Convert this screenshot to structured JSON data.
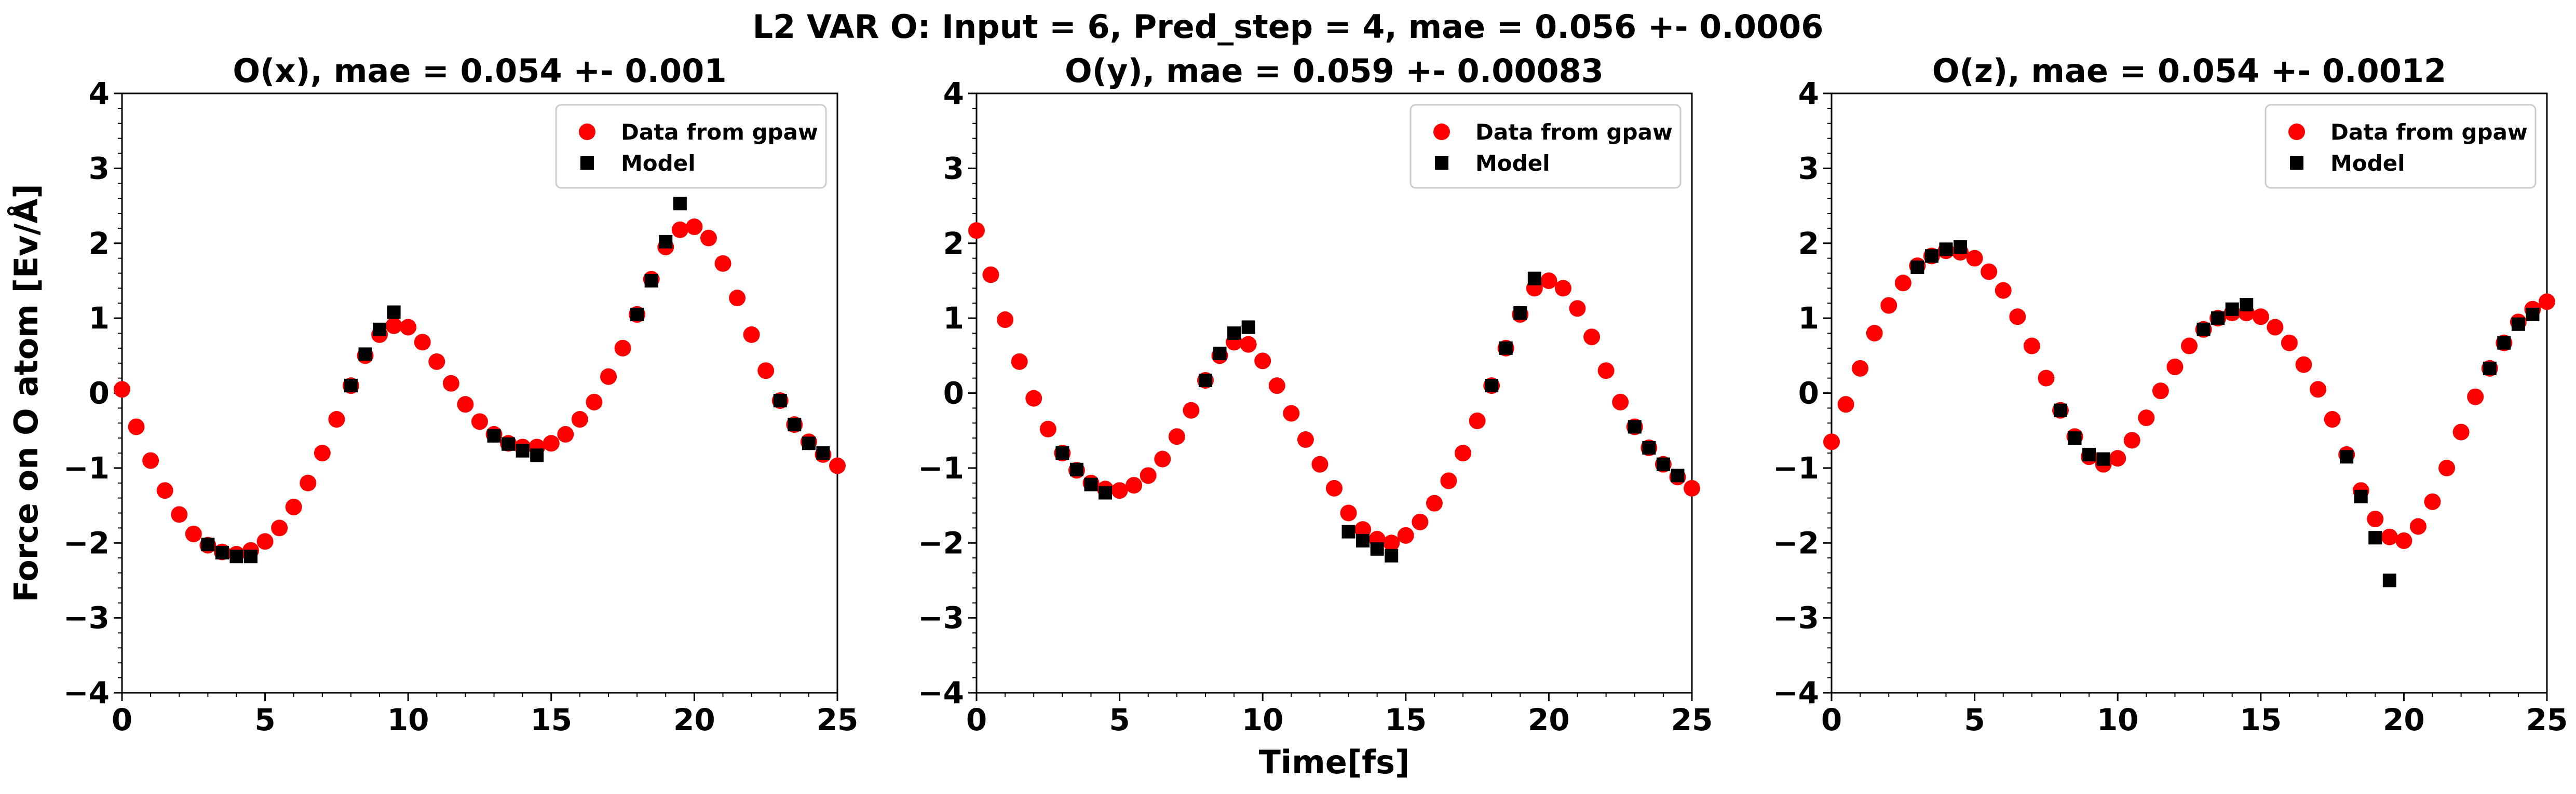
{
  "suptitle": "L2 VAR O: Input = 6, Pred_step = 4, mae = 0.056 +- 0.0006",
  "colors": {
    "data": "#ff0000",
    "model": "#000000"
  },
  "chart_data": [
    {
      "type": "scatter",
      "title": "O(x), mae = 0.054 +- 0.001",
      "xlabel": "",
      "ylabel": "Force on O atom [Ev/Å]",
      "xlim": [
        0,
        25
      ],
      "ylim": [
        -4,
        4
      ],
      "xticks": [
        "0",
        "5",
        "10",
        "15",
        "20",
        "25"
      ],
      "yticks": [
        "−4",
        "−3",
        "−2",
        "−1",
        "0",
        "1",
        "2",
        "3",
        "4"
      ],
      "legend_position": "top-right",
      "series": [
        {
          "name": "Data from gpaw",
          "marker": "circle",
          "x": [
            0,
            0.5,
            1,
            1.5,
            2,
            2.5,
            3,
            3.5,
            4,
            4.5,
            5,
            5.5,
            6,
            6.5,
            7,
            7.5,
            8,
            8.5,
            9,
            9.5,
            10,
            10.5,
            11,
            11.5,
            12,
            12.5,
            13,
            13.5,
            14,
            14.5,
            15,
            15.5,
            16,
            16.5,
            17,
            17.5,
            18,
            18.5,
            19,
            19.5,
            20,
            20.5,
            21,
            21.5,
            22,
            22.5,
            23,
            23.5,
            24,
            24.5,
            25
          ],
          "y": [
            0.05,
            -0.45,
            -0.9,
            -1.3,
            -1.62,
            -1.88,
            -2.03,
            -2.12,
            -2.15,
            -2.1,
            -1.98,
            -1.8,
            -1.52,
            -1.2,
            -0.8,
            -0.35,
            0.1,
            0.5,
            0.78,
            0.9,
            0.88,
            0.68,
            0.42,
            0.13,
            -0.15,
            -0.38,
            -0.55,
            -0.67,
            -0.72,
            -0.72,
            -0.67,
            -0.55,
            -0.35,
            -0.12,
            0.22,
            0.6,
            1.05,
            1.52,
            1.95,
            2.18,
            2.22,
            2.07,
            1.73,
            1.27,
            0.78,
            0.3,
            -0.1,
            -0.42,
            -0.65,
            -0.82,
            -0.97
          ]
        },
        {
          "name": "Model",
          "marker": "square",
          "x": [
            3,
            3.5,
            4,
            4.5,
            8,
            8.5,
            9,
            9.5,
            13,
            13.5,
            14,
            14.5,
            18,
            18.5,
            19,
            19.5,
            23,
            23.5,
            24,
            24.5
          ],
          "y": [
            -2.02,
            -2.13,
            -2.18,
            -2.18,
            0.1,
            0.52,
            0.85,
            1.08,
            -0.57,
            -0.68,
            -0.77,
            -0.83,
            1.05,
            1.5,
            2.02,
            2.53,
            -0.1,
            -0.42,
            -0.67,
            -0.8
          ]
        }
      ]
    },
    {
      "type": "scatter",
      "title": "O(y), mae = 0.059 +- 0.00083",
      "xlabel": "Time[fs]",
      "ylabel": "",
      "xlim": [
        0,
        25
      ],
      "ylim": [
        -4,
        4
      ],
      "xticks": [
        "0",
        "5",
        "10",
        "15",
        "20",
        "25"
      ],
      "yticks": [
        "−4",
        "−3",
        "−2",
        "−1",
        "0",
        "1",
        "2",
        "3",
        "4"
      ],
      "legend_position": "top-right",
      "series": [
        {
          "name": "Data from gpaw",
          "marker": "circle",
          "x": [
            0,
            0.5,
            1,
            1.5,
            2,
            2.5,
            3,
            3.5,
            4,
            4.5,
            5,
            5.5,
            6,
            6.5,
            7,
            7.5,
            8,
            8.5,
            9,
            9.5,
            10,
            10.5,
            11,
            11.5,
            12,
            12.5,
            13,
            13.5,
            14,
            14.5,
            15,
            15.5,
            16,
            16.5,
            17,
            17.5,
            18,
            18.5,
            19,
            19.5,
            20,
            20.5,
            21,
            21.5,
            22,
            22.5,
            23,
            23.5,
            24,
            24.5,
            25
          ],
          "y": [
            2.17,
            1.58,
            0.98,
            0.42,
            -0.07,
            -0.48,
            -0.8,
            -1.03,
            -1.2,
            -1.28,
            -1.3,
            -1.23,
            -1.1,
            -0.88,
            -0.58,
            -0.23,
            0.17,
            0.5,
            0.68,
            0.65,
            0.43,
            0.1,
            -0.27,
            -0.62,
            -0.95,
            -1.27,
            -1.6,
            -1.82,
            -1.95,
            -2.0,
            -1.9,
            -1.72,
            -1.47,
            -1.17,
            -0.8,
            -0.37,
            0.1,
            0.6,
            1.05,
            1.4,
            1.5,
            1.4,
            1.13,
            0.75,
            0.3,
            -0.12,
            -0.45,
            -0.73,
            -0.95,
            -1.12,
            -1.27
          ]
        },
        {
          "name": "Model",
          "marker": "square",
          "x": [
            3,
            3.5,
            4,
            4.5,
            8,
            8.5,
            9,
            9.5,
            13,
            13.5,
            14,
            14.5,
            18,
            18.5,
            19,
            19.5,
            23,
            23.5,
            24,
            24.5
          ],
          "y": [
            -0.8,
            -1.02,
            -1.22,
            -1.33,
            0.17,
            0.53,
            0.8,
            0.88,
            -1.85,
            -1.97,
            -2.08,
            -2.17,
            0.1,
            0.6,
            1.07,
            1.53,
            -0.45,
            -0.73,
            -0.95,
            -1.1
          ]
        }
      ]
    },
    {
      "type": "scatter",
      "title": "O(z), mae = 0.054 +- 0.0012",
      "xlabel": "",
      "ylabel": "",
      "xlim": [
        0,
        25
      ],
      "ylim": [
        -4,
        4
      ],
      "xticks": [
        "0",
        "5",
        "10",
        "15",
        "20",
        "25"
      ],
      "yticks": [
        "−4",
        "−3",
        "−2",
        "−1",
        "0",
        "1",
        "2",
        "3",
        "4"
      ],
      "legend_position": "top-right",
      "series": [
        {
          "name": "Data from gpaw",
          "marker": "circle",
          "x": [
            0,
            0.5,
            1,
            1.5,
            2,
            2.5,
            3,
            3.5,
            4,
            4.5,
            5,
            5.5,
            6,
            6.5,
            7,
            7.5,
            8,
            8.5,
            9,
            9.5,
            10,
            10.5,
            11,
            11.5,
            12,
            12.5,
            13,
            13.5,
            14,
            14.5,
            15,
            15.5,
            16,
            16.5,
            17,
            17.5,
            18,
            18.5,
            19,
            19.5,
            20,
            20.5,
            21,
            21.5,
            22,
            22.5,
            23,
            23.5,
            24,
            24.5,
            25
          ],
          "y": [
            -0.65,
            -0.15,
            0.33,
            0.8,
            1.17,
            1.47,
            1.7,
            1.83,
            1.9,
            1.88,
            1.8,
            1.62,
            1.37,
            1.02,
            0.63,
            0.2,
            -0.23,
            -0.58,
            -0.85,
            -0.95,
            -0.87,
            -0.63,
            -0.33,
            0.03,
            0.35,
            0.63,
            0.85,
            1.0,
            1.07,
            1.07,
            1.02,
            0.88,
            0.67,
            0.38,
            0.05,
            -0.35,
            -0.82,
            -1.3,
            -1.68,
            -1.92,
            -1.97,
            -1.78,
            -1.45,
            -1.0,
            -0.52,
            -0.05,
            0.33,
            0.67,
            0.95,
            1.12,
            1.22
          ]
        },
        {
          "name": "Model",
          "marker": "square",
          "x": [
            3,
            3.5,
            4,
            4.5,
            8,
            8.5,
            9,
            9.5,
            13,
            13.5,
            14,
            14.5,
            18,
            18.5,
            19,
            19.5,
            23,
            23.5,
            24,
            24.5
          ],
          "y": [
            1.68,
            1.83,
            1.92,
            1.95,
            -0.23,
            -0.6,
            -0.82,
            -0.88,
            0.85,
            1.0,
            1.12,
            1.18,
            -0.85,
            -1.38,
            -1.93,
            -2.5,
            0.33,
            0.67,
            0.92,
            1.05
          ]
        }
      ]
    }
  ]
}
